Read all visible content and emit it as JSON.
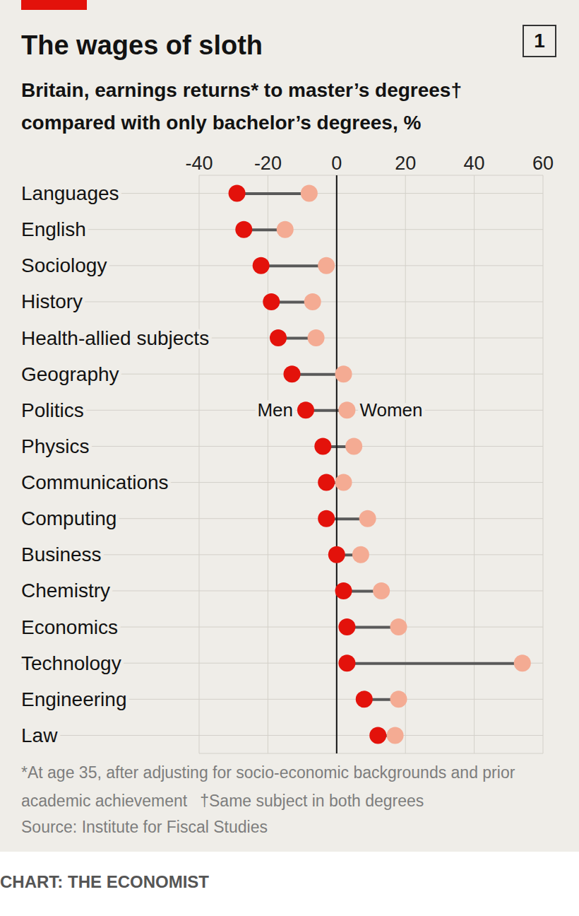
{
  "chart_data": {
    "type": "dumbbell",
    "title": "The wages of sloth",
    "subtitle": "Britain, earnings returns* to master’s degrees† compared with only bachelor’s degrees, %",
    "chart_number": "1",
    "categories": [
      "Languages",
      "English",
      "Sociology",
      "History",
      "Health-allied subjects",
      "Geography",
      "Politics",
      "Physics",
      "Communications",
      "Computing",
      "Business",
      "Chemistry",
      "Economics",
      "Technology",
      "Engineering",
      "Law"
    ],
    "series": [
      {
        "name": "Men",
        "color": "#e3120b",
        "values": [
          -29,
          -27,
          -22,
          -19,
          -17,
          -13,
          -9,
          -4,
          -3,
          -3,
          0,
          2,
          3,
          3,
          8,
          12
        ]
      },
      {
        "name": "Women",
        "color": "#f4ab93",
        "values": [
          -8,
          -15,
          -3,
          -7,
          -6,
          2,
          3,
          5,
          2,
          9,
          7,
          13,
          18,
          54,
          18,
          17
        ]
      }
    ],
    "xlim": [
      -40,
      60
    ],
    "xticks": [
      -40,
      -20,
      0,
      20,
      40,
      60
    ],
    "grid": true,
    "orientation": "horizontal",
    "notes": [
      "*At age 35, after adjusting for socio-economic backgrounds and prior academic achievement",
      "†Same subject in both degrees"
    ],
    "source": "Source: Institute for Fiscal Studies",
    "credit": "CHART: THE ECONOMIST"
  }
}
